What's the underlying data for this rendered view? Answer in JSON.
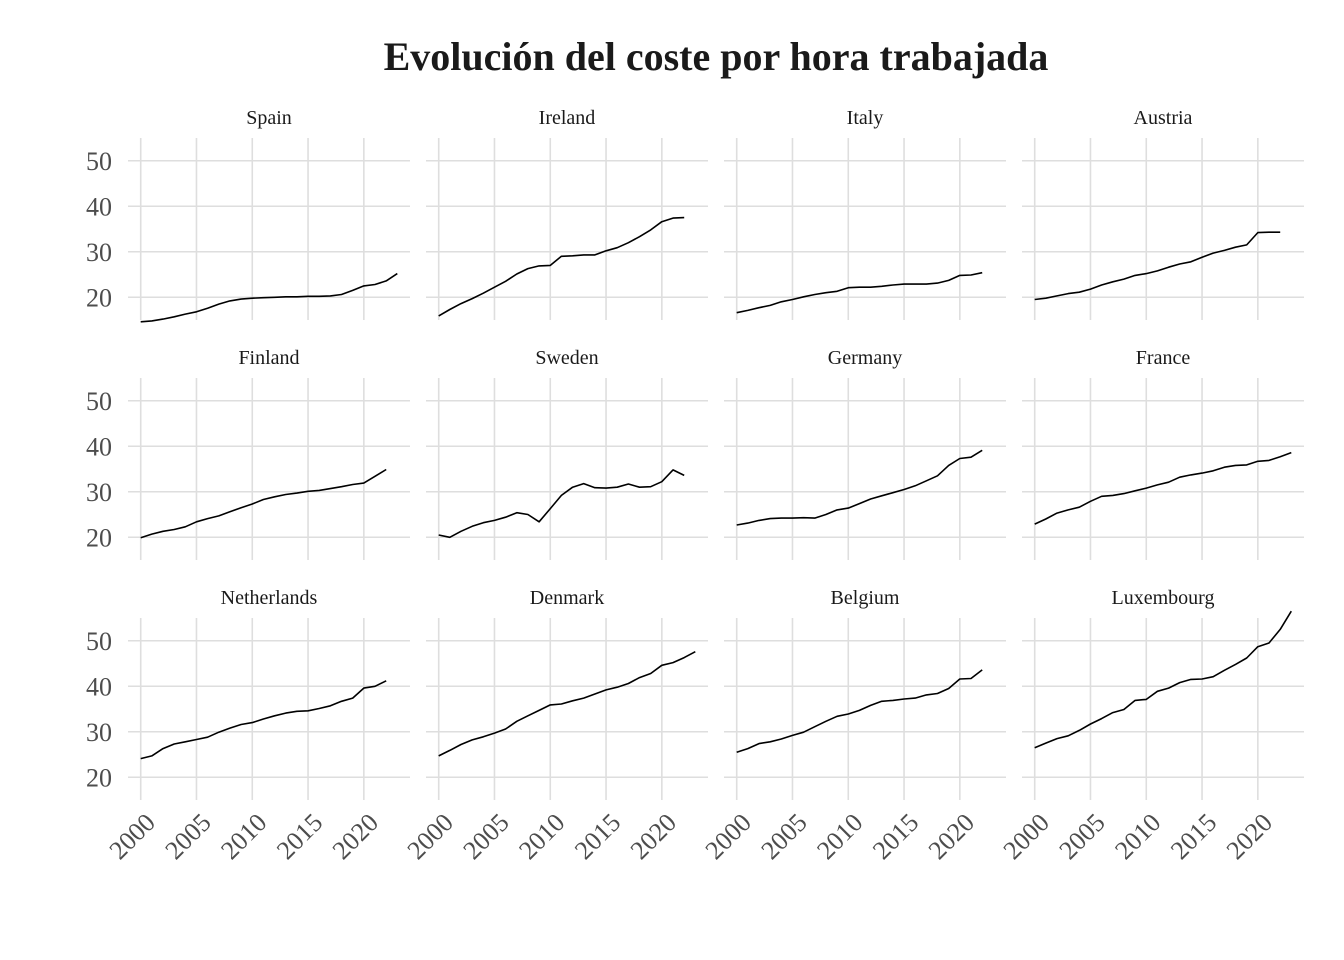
{
  "chart_data": {
    "type": "line",
    "title": "Evolución del coste por hora trabajada",
    "xlabel": "",
    "ylabel": "",
    "layout": "facet-grid 3 rows x 4 columns, shared axes",
    "xlim": [
      2000,
      2023
    ],
    "ylim": [
      15,
      55
    ],
    "x_ticks": [
      2000,
      2005,
      2010,
      2015,
      2020
    ],
    "y_ticks": [
      20,
      30,
      40,
      50
    ],
    "grid": true,
    "legend": "none",
    "line_color": "#000000",
    "x": [
      2000,
      2001,
      2002,
      2003,
      2004,
      2005,
      2006,
      2007,
      2008,
      2009,
      2010,
      2011,
      2012,
      2013,
      2014,
      2015,
      2016,
      2017,
      2018,
      2019,
      2020,
      2021,
      2022,
      2023
    ],
    "series": [
      {
        "name": "Spain",
        "values": [
          14.6,
          14.8,
          15.2,
          15.7,
          16.3,
          16.8,
          17.6,
          18.5,
          19.2,
          19.6,
          19.8,
          19.9,
          20.0,
          20.1,
          20.1,
          20.2,
          20.2,
          20.3,
          20.6,
          21.5,
          22.5,
          22.8,
          23.6,
          25.2
        ]
      },
      {
        "name": "Ireland",
        "values": [
          15.9,
          17.3,
          18.6,
          19.7,
          20.9,
          22.2,
          23.5,
          25.1,
          26.3,
          26.9,
          27.0,
          29.0,
          29.1,
          29.3,
          29.3,
          30.2,
          30.9,
          32.0,
          33.3,
          34.8,
          36.6,
          37.4,
          37.5,
          null
        ]
      },
      {
        "name": "Italy",
        "values": [
          16.6,
          17.1,
          17.7,
          18.2,
          19.0,
          19.5,
          20.1,
          20.6,
          21.0,
          21.3,
          22.1,
          22.2,
          22.2,
          22.4,
          22.7,
          22.9,
          22.9,
          22.9,
          23.1,
          23.7,
          24.8,
          24.9,
          25.4,
          null
        ]
      },
      {
        "name": "Austria",
        "values": [
          19.5,
          19.8,
          20.3,
          20.8,
          21.1,
          21.8,
          22.7,
          23.4,
          24.0,
          24.8,
          25.2,
          25.8,
          26.6,
          27.3,
          27.8,
          28.8,
          29.7,
          30.3,
          31.0,
          31.5,
          34.2,
          34.3,
          34.3,
          null
        ]
      },
      {
        "name": "Finland",
        "values": [
          19.9,
          20.7,
          21.3,
          21.7,
          22.3,
          23.4,
          24.1,
          24.7,
          25.6,
          26.5,
          27.3,
          28.3,
          28.9,
          29.4,
          29.7,
          30.1,
          30.3,
          30.7,
          31.1,
          31.6,
          31.9,
          33.4,
          34.9,
          null
        ]
      },
      {
        "name": "Sweden",
        "values": [
          20.5,
          20.0,
          21.3,
          22.4,
          23.2,
          23.7,
          24.4,
          25.4,
          25.0,
          23.4,
          26.3,
          29.2,
          31.0,
          31.8,
          30.9,
          30.8,
          31.0,
          31.7,
          31.0,
          31.1,
          32.2,
          34.8,
          33.6,
          null
        ]
      },
      {
        "name": "Germany",
        "values": [
          22.7,
          23.1,
          23.7,
          24.1,
          24.2,
          24.2,
          24.3,
          24.2,
          25.0,
          26.0,
          26.4,
          27.4,
          28.4,
          29.1,
          29.8,
          30.5,
          31.3,
          32.4,
          33.5,
          35.8,
          37.3,
          37.6,
          39.1,
          null
        ]
      },
      {
        "name": "France",
        "values": [
          22.9,
          24.0,
          25.3,
          26.0,
          26.6,
          27.9,
          29.0,
          29.2,
          29.6,
          30.2,
          30.8,
          31.5,
          32.1,
          33.2,
          33.7,
          34.1,
          34.6,
          35.4,
          35.8,
          35.9,
          36.7,
          36.9,
          37.7,
          38.6
        ]
      },
      {
        "name": "Netherlands",
        "values": [
          24.1,
          24.7,
          26.3,
          27.3,
          27.8,
          28.3,
          28.8,
          29.9,
          30.8,
          31.6,
          32.0,
          32.8,
          33.5,
          34.1,
          34.5,
          34.6,
          35.1,
          35.7,
          36.7,
          37.4,
          39.6,
          40.0,
          41.2,
          null
        ]
      },
      {
        "name": "Denmark",
        "values": [
          24.7,
          25.9,
          27.2,
          28.2,
          28.9,
          29.7,
          30.6,
          32.3,
          33.5,
          34.7,
          35.9,
          36.1,
          36.8,
          37.4,
          38.3,
          39.2,
          39.8,
          40.6,
          41.9,
          42.8,
          44.6,
          45.2,
          46.3,
          47.6
        ]
      },
      {
        "name": "Belgium",
        "values": [
          25.5,
          26.3,
          27.4,
          27.8,
          28.4,
          29.2,
          29.9,
          31.1,
          32.3,
          33.4,
          33.9,
          34.7,
          35.8,
          36.7,
          36.9,
          37.2,
          37.4,
          38.1,
          38.4,
          39.5,
          41.6,
          41.7,
          43.6,
          null
        ]
      },
      {
        "name": "Luxembourg",
        "values": [
          26.5,
          27.5,
          28.5,
          29.1,
          30.3,
          31.7,
          32.9,
          34.2,
          34.9,
          36.9,
          37.1,
          38.9,
          39.6,
          40.8,
          41.5,
          41.6,
          42.1,
          43.5,
          44.8,
          46.2,
          48.7,
          49.5,
          52.5,
          56.5
        ]
      }
    ]
  }
}
